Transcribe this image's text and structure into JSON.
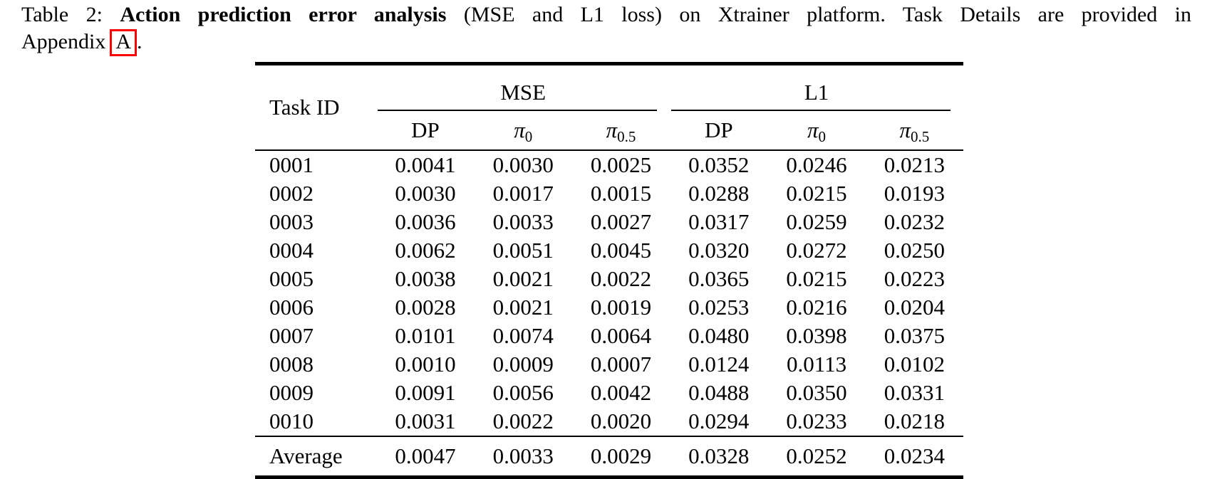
{
  "page": {
    "background_color": "#ffffff",
    "text_color": "#000000"
  },
  "caption": {
    "label": "Table 2:",
    "title": "Action prediction error analysis",
    "rest": "(MSE and L1 loss) on Xtrainer platform. Task Details are provided in",
    "line2_prefix": "Appendix",
    "appendix_link": "A",
    "line2_suffix": ".",
    "link_box_color": "#ff0000"
  },
  "table": {
    "corner_header": "Task ID",
    "groups": [
      "MSE",
      "L1"
    ],
    "subheaders": [
      {
        "base": "DP",
        "sub": ""
      },
      {
        "base": "π",
        "sub": "0"
      },
      {
        "base": "π",
        "sub": "0.5"
      },
      {
        "base": "DP",
        "sub": ""
      },
      {
        "base": "π",
        "sub": "0"
      },
      {
        "base": "π",
        "sub": "0.5"
      }
    ],
    "rows": [
      {
        "task_id": "0001",
        "values": [
          "0.0041",
          "0.0030",
          "0.0025",
          "0.0352",
          "0.0246",
          "0.0213"
        ],
        "bold": [
          false,
          false,
          true,
          false,
          false,
          true
        ]
      },
      {
        "task_id": "0002",
        "values": [
          "0.0030",
          "0.0017",
          "0.0015",
          "0.0288",
          "0.0215",
          "0.0193"
        ],
        "bold": [
          false,
          false,
          true,
          false,
          false,
          true
        ]
      },
      {
        "task_id": "0003",
        "values": [
          "0.0036",
          "0.0033",
          "0.0027",
          "0.0317",
          "0.0259",
          "0.0232"
        ],
        "bold": [
          false,
          false,
          true,
          false,
          false,
          true
        ]
      },
      {
        "task_id": "0004",
        "values": [
          "0.0062",
          "0.0051",
          "0.0045",
          "0.0320",
          "0.0272",
          "0.0250"
        ],
        "bold": [
          false,
          false,
          true,
          false,
          false,
          true
        ]
      },
      {
        "task_id": "0005",
        "values": [
          "0.0038",
          "0.0021",
          "0.0022",
          "0.0365",
          "0.0215",
          "0.0223"
        ],
        "bold": [
          false,
          true,
          false,
          false,
          true,
          false
        ]
      },
      {
        "task_id": "0006",
        "values": [
          "0.0028",
          "0.0021",
          "0.0019",
          "0.0253",
          "0.0216",
          "0.0204"
        ],
        "bold": [
          false,
          false,
          true,
          false,
          false,
          true
        ]
      },
      {
        "task_id": "0007",
        "values": [
          "0.0101",
          "0.0074",
          "0.0064",
          "0.0480",
          "0.0398",
          "0.0375"
        ],
        "bold": [
          false,
          false,
          true,
          false,
          false,
          true
        ]
      },
      {
        "task_id": "0008",
        "values": [
          "0.0010",
          "0.0009",
          "0.0007",
          "0.0124",
          "0.0113",
          "0.0102"
        ],
        "bold": [
          false,
          false,
          true,
          false,
          false,
          true
        ]
      },
      {
        "task_id": "0009",
        "values": [
          "0.0091",
          "0.0056",
          "0.0042",
          "0.0488",
          "0.0350",
          "0.0331"
        ],
        "bold": [
          false,
          false,
          true,
          false,
          false,
          true
        ]
      },
      {
        "task_id": "0010",
        "values": [
          "0.0031",
          "0.0022",
          "0.0020",
          "0.0294",
          "0.0233",
          "0.0218"
        ],
        "bold": [
          false,
          false,
          true,
          false,
          false,
          true
        ]
      }
    ],
    "average": {
      "label": "Average",
      "values": [
        "0.0047",
        "0.0033",
        "0.0029",
        "0.0328",
        "0.0252",
        "0.0234"
      ],
      "bold": [
        false,
        false,
        true,
        false,
        false,
        true
      ]
    }
  }
}
